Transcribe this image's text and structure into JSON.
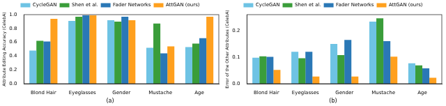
{
  "chart_data": [
    {
      "type": "bar",
      "subtitle": "(a)",
      "y_label": "Attribute Editing Accuracy (CelebA)",
      "categories": [
        "Blond Hair",
        "Eyeglasses",
        "Gender",
        "Mustache",
        "Age"
      ],
      "series": [
        {
          "name": "CycleGAN",
          "color": "#6ec3e4",
          "values": [
            0.48,
            0.91,
            0.92,
            0.52,
            0.53
          ]
        },
        {
          "name": "Shen et al.",
          "color": "#3a9d3a",
          "values": [
            0.62,
            0.97,
            0.9,
            0.87,
            0.58
          ]
        },
        {
          "name": "Fader Networks",
          "color": "#2a78b6",
          "values": [
            0.61,
            0.99,
            0.97,
            0.44,
            0.66
          ]
        },
        {
          "name": "AttGAN (ours)",
          "color": "#ffa01e",
          "values": [
            0.94,
            0.99,
            0.92,
            0.54,
            0.97
          ]
        }
      ],
      "ylim": [
        0,
        1.0
      ],
      "yticks": [
        {
          "value": 0,
          "label": "0.0"
        },
        0.2,
        0.4,
        0.6,
        0.8,
        {
          "value": 1.0,
          "label": "1.0"
        }
      ],
      "grid": false,
      "legend": "top"
    },
    {
      "type": "bar",
      "subtitle": "(b)",
      "y_label": "Error of the Other Attributes (CelebA)",
      "categories": [
        "Blond Hair",
        "Eyeglasses",
        "Gender",
        "Mustache",
        "Age"
      ],
      "series": [
        {
          "name": "CycleGAN",
          "color": "#6ec3e4",
          "values": [
            0.098,
            0.12,
            0.15,
            0.234,
            0.077
          ]
        },
        {
          "name": "Shen et al.",
          "color": "#3a9d3a",
          "values": [
            0.103,
            0.096,
            0.108,
            0.246,
            0.069
          ]
        },
        {
          "name": "Fader Networks",
          "color": "#2a78b6",
          "values": [
            0.101,
            0.12,
            0.165,
            0.16,
            0.058
          ]
        },
        {
          "name": "AttGAN (ours)",
          "color": "#ffa01e",
          "values": [
            0.052,
            0.027,
            0.027,
            0.102,
            0.022
          ]
        }
      ],
      "ylim": [
        0,
        0.26
      ],
      "yticks": [
        {
          "value": 0,
          "label": "0.0"
        },
        0.1,
        0.2
      ],
      "grid": false,
      "legend": "top"
    }
  ]
}
